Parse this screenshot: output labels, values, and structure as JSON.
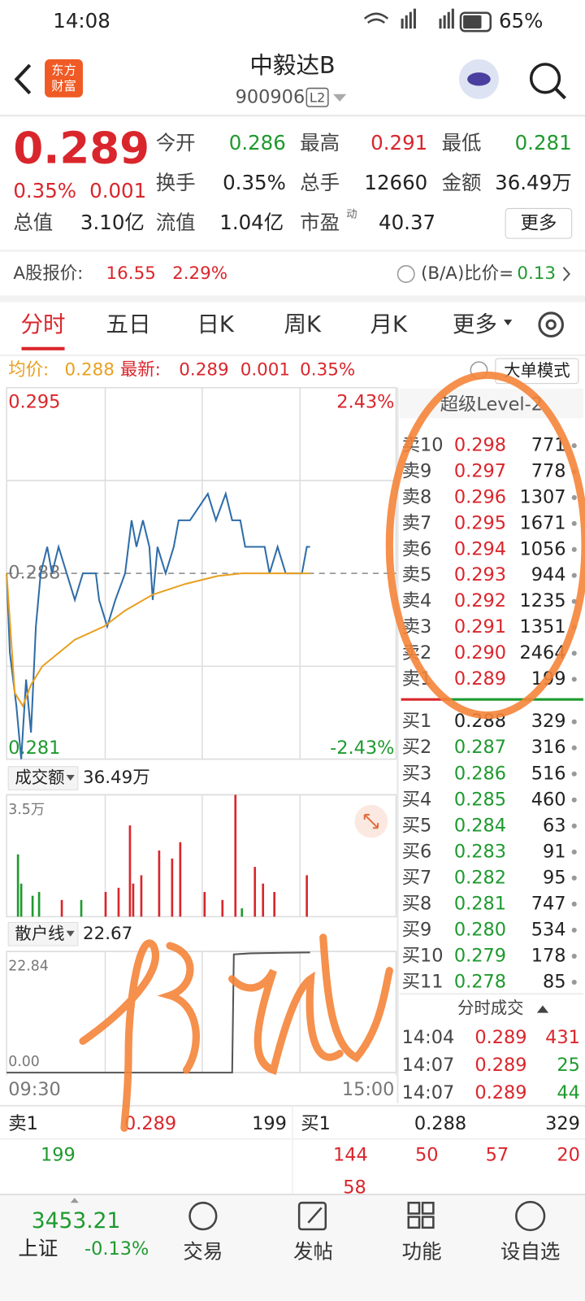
{
  "status_bar": {
    "time": "14:08",
    "battery": "65%"
  },
  "header": {
    "title": "中毅达B",
    "code": "900906",
    "badge": "L2",
    "logo": [
      "东方",
      "财富"
    ]
  },
  "quote": {
    "price": "0.289",
    "change_pct": "0.35%",
    "change": "0.001",
    "pe_note": "动",
    "more": "更多",
    "fields": [
      {
        "label": "今开",
        "value": "0.286"
      },
      {
        "label": "最高",
        "value": "0.291"
      },
      {
        "label": "最低",
        "value": "0.281"
      },
      {
        "label": "换手",
        "value": "0.35%"
      },
      {
        "label": "总手",
        "value": "12660"
      },
      {
        "label": "金额",
        "value": "36.49万"
      },
      {
        "label": "总值",
        "value": "3.10亿"
      },
      {
        "label": "流值",
        "value": "1.04亿"
      },
      {
        "label": "市盈",
        "value": "40.37"
      }
    ]
  },
  "a_share": {
    "label": "A股报价:",
    "price": "16.55",
    "change_pct": "2.29%",
    "ratio_label": "(B/A)比价=",
    "ratio": "0.13"
  },
  "tabs": [
    "分时",
    "五日",
    "日K",
    "周K",
    "月K",
    "更多"
  ],
  "legend": {
    "avg_label": "均价:",
    "avg": "0.288",
    "last_label": "最新:",
    "last": "0.289",
    "change": "0.001",
    "change_pct": "0.35%",
    "mode": "大单模式"
  },
  "chart_data": [
    {
      "type": "line",
      "ylim": [
        0.281,
        0.295
      ],
      "yticks": [
        0.281,
        0.288,
        0.295
      ],
      "y2lim": [
        -2.43,
        2.43
      ],
      "y2ticks": [
        {
          "value": -2.43,
          "label": "-2.43%"
        },
        {
          "value": 2.43,
          "label": "2.43%"
        }
      ],
      "xlim": [
        0,
        240
      ],
      "series": [
        {
          "color": "#2f6da8",
          "x": [
            0,
            2,
            6,
            9,
            12,
            15,
            18,
            21,
            25,
            28,
            32,
            37,
            42,
            47,
            55,
            57,
            62,
            67,
            73,
            77,
            80,
            84,
            88,
            90,
            93,
            98,
            103,
            106,
            113,
            124,
            129,
            135,
            139,
            144,
            147,
            159,
            162,
            167,
            172,
            182,
            185,
            187
          ],
          "values": [
            0.288,
            0.285,
            0.283,
            0.281,
            0.284,
            0.282,
            0.286,
            0.288,
            0.289,
            0.288,
            0.289,
            0.288,
            0.287,
            0.288,
            0.288,
            0.287,
            0.286,
            0.287,
            0.288,
            0.29,
            0.289,
            0.29,
            0.289,
            0.287,
            0.289,
            0.288,
            0.289,
            0.29,
            0.29,
            0.291,
            0.29,
            0.291,
            0.29,
            0.29,
            0.289,
            0.289,
            0.288,
            0.289,
            0.288,
            0.288,
            0.289,
            0.289
          ]
        },
        {
          "color": "#e8a020",
          "x": [
            0,
            5,
            10,
            15,
            22,
            42,
            60,
            73,
            90,
            110,
            130,
            145,
            187
          ],
          "values": [
            0.288,
            0.2835,
            0.283,
            0.2838,
            0.2845,
            0.2855,
            0.286,
            0.2866,
            0.2872,
            0.2876,
            0.2879,
            0.288,
            0.288
          ]
        }
      ]
    },
    {
      "type": "bar",
      "label": "成交额",
      "total": "36.49万",
      "ylim": [
        0,
        3.5
      ],
      "yticks": [
        {
          "value": 3.5,
          "label": "3.5万"
        }
      ],
      "xlim": [
        0,
        240
      ],
      "x": [
        7,
        9,
        16,
        20,
        34,
        46,
        61,
        69,
        76,
        78,
        83,
        94,
        102,
        107,
        122,
        133,
        141,
        145,
        153,
        158,
        165,
        185
      ],
      "values": [
        1.79,
        0.95,
        0.6,
        0.71,
        0.48,
        0.48,
        0.71,
        0.83,
        2.62,
        0.95,
        1.19,
        1.9,
        1.67,
        2.14,
        0.71,
        0.48,
        3.5,
        0.24,
        1.43,
        0.95,
        0.71,
        1.19
      ],
      "colors": [
        "#1f9a2f",
        "#1f9a2f",
        "#1f9a2f",
        "#1f9a2f",
        "#d9262c",
        "#1f9a2f",
        "#d9262c",
        "#d9262c",
        "#d9262c",
        "#d9262c",
        "#d9262c",
        "#d9262c",
        "#d9262c",
        "#d9262c",
        "#d9262c",
        "#d9262c",
        "#d9262c",
        "#1f9a2f",
        "#d9262c",
        "#d9262c",
        "#d9262c",
        "#d9262c"
      ]
    },
    {
      "type": "line",
      "label": "散户线",
      "latest": "22.67",
      "ylim": [
        0,
        22.84
      ],
      "yticks": [
        {
          "value": 0,
          "label": "0.00"
        },
        22.84
      ],
      "xlim": [
        0,
        240
      ],
      "xticks": [
        {
          "value": 0,
          "label": "09:30"
        },
        {
          "value": 240,
          "label": "15:00"
        }
      ],
      "series": [
        {
          "color": "#555555",
          "x": [
            0,
            139,
            140,
            150,
            170,
            187
          ],
          "values": [
            0,
            0,
            22.3,
            22.5,
            22.6,
            22.67
          ]
        }
      ]
    }
  ],
  "level2": {
    "title": "超级Level-2",
    "asks": [
      {
        "label": "卖10",
        "price": "0.298",
        "volume": "771"
      },
      {
        "label": "卖9",
        "price": "0.297",
        "volume": "778"
      },
      {
        "label": "卖8",
        "price": "0.296",
        "volume": "1307"
      },
      {
        "label": "卖7",
        "price": "0.295",
        "volume": "1671"
      },
      {
        "label": "卖6",
        "price": "0.294",
        "volume": "1056"
      },
      {
        "label": "卖5",
        "price": "0.293",
        "volume": "944"
      },
      {
        "label": "卖4",
        "price": "0.292",
        "volume": "1235"
      },
      {
        "label": "卖3",
        "price": "0.291",
        "volume": "1351"
      },
      {
        "label": "卖2",
        "price": "0.290",
        "volume": "2464"
      },
      {
        "label": "卖1",
        "price": "0.289",
        "volume": "199"
      }
    ],
    "bids": [
      {
        "label": "买1",
        "price": "0.288",
        "volume": "329"
      },
      {
        "label": "买2",
        "price": "0.287",
        "volume": "316"
      },
      {
        "label": "买3",
        "price": "0.286",
        "volume": "516"
      },
      {
        "label": "买4",
        "price": "0.285",
        "volume": "460"
      },
      {
        "label": "买5",
        "price": "0.284",
        "volume": "63"
      },
      {
        "label": "买6",
        "price": "0.283",
        "volume": "91"
      },
      {
        "label": "买7",
        "price": "0.282",
        "volume": "95"
      },
      {
        "label": "买8",
        "price": "0.281",
        "volume": "747"
      },
      {
        "label": "买9",
        "price": "0.280",
        "volume": "534"
      },
      {
        "label": "买10",
        "price": "0.279",
        "volume": "178"
      },
      {
        "label": "买11",
        "price": "0.278",
        "volume": "85"
      }
    ]
  },
  "trades": {
    "title": "分时成交",
    "rows": [
      [
        "14:04",
        "0.289",
        "431"
      ],
      [
        "14:07",
        "0.289",
        "25"
      ],
      [
        "14:07",
        "0.289",
        "44"
      ]
    ]
  },
  "queue": {
    "ask_label": "卖1",
    "ask_price": "0.289",
    "ask_volume": "199",
    "bid_label": "买1",
    "bid_price": "0.288",
    "bid_volume": "329",
    "ask_orders": [
      "199"
    ],
    "bid_orders": [
      "144",
      "50",
      "57",
      "20",
      "58"
    ]
  },
  "nav": {
    "index_value": "3453.21",
    "index_name": "上证",
    "index_change": "-0.13%",
    "items": [
      "交易",
      "发帖",
      "功能",
      "设自选"
    ]
  }
}
